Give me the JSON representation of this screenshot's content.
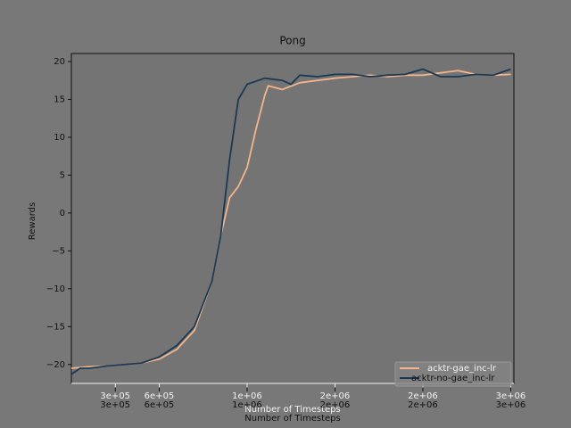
{
  "chart_data": {
    "type": "line",
    "title": "Pong",
    "x_label": "Number of Timesteps",
    "y_label": "Rewards",
    "xlim": [
      0,
      2518000
    ],
    "ylim": [
      -22.5,
      21.06
    ],
    "xticks": [
      {
        "value": 250000,
        "label": "3e+05"
      },
      {
        "value": 500000,
        "label": "6e+05"
      },
      {
        "value": 1000000,
        "label": "1e+06"
      },
      {
        "value": 1500000,
        "label": "2e+06"
      },
      {
        "value": 2000000,
        "label": "2e+06"
      },
      {
        "value": 2500000,
        "label": "3e+06"
      }
    ],
    "yticks": [
      {
        "value": -20,
        "label": "−20"
      },
      {
        "value": -15,
        "label": "−15"
      },
      {
        "value": -10,
        "label": "−10"
      },
      {
        "value": -5,
        "label": "−5"
      },
      0,
      5,
      10,
      15,
      20
    ],
    "legend": "lower right",
    "series": [
      {
        "name": "acktr-gae_inc-lr",
        "color": "#f2b48c",
        "x": [
          0,
          100000,
          200000,
          300000,
          400000,
          500000,
          600000,
          700000,
          800000,
          850000,
          900000,
          950000,
          1000000,
          1050000,
          1100000,
          1120000,
          1200000,
          1300000,
          1400000,
          1500000,
          1600000,
          1700000,
          1800000,
          1900000,
          2000000,
          2100000,
          2200000,
          2300000,
          2400000,
          2500000
        ],
        "values": [
          -20.5,
          -20.3,
          -20.2,
          -20,
          -19.8,
          -19.3,
          -18,
          -15.5,
          -9,
          -3,
          2,
          3.5,
          6,
          11,
          15.5,
          16.8,
          16.3,
          17.2,
          17.5,
          17.8,
          18,
          18.2,
          18,
          18.2,
          18.2,
          18.5,
          18.8,
          18.3,
          18.2,
          18.3
        ]
      },
      {
        "name": "acktr-no-gae_inc-lr",
        "color": "#1b3954",
        "x": [
          0,
          50000,
          100000,
          200000,
          300000,
          400000,
          500000,
          600000,
          700000,
          800000,
          850000,
          900000,
          950000,
          1000000,
          1100000,
          1200000,
          1250000,
          1300000,
          1400000,
          1500000,
          1600000,
          1700000,
          1800000,
          1900000,
          2000000,
          2100000,
          2200000,
          2300000,
          2400000,
          2500000
        ],
        "values": [
          -21.3,
          -20.5,
          -20.5,
          -20.2,
          -20,
          -19.8,
          -19,
          -17.5,
          -15,
          -9,
          -3,
          7,
          15,
          17,
          17.8,
          17.5,
          17,
          18.2,
          18,
          18.3,
          18.3,
          18,
          18.2,
          18.3,
          19,
          18,
          18,
          18.3,
          18.2,
          19
        ]
      }
    ]
  }
}
